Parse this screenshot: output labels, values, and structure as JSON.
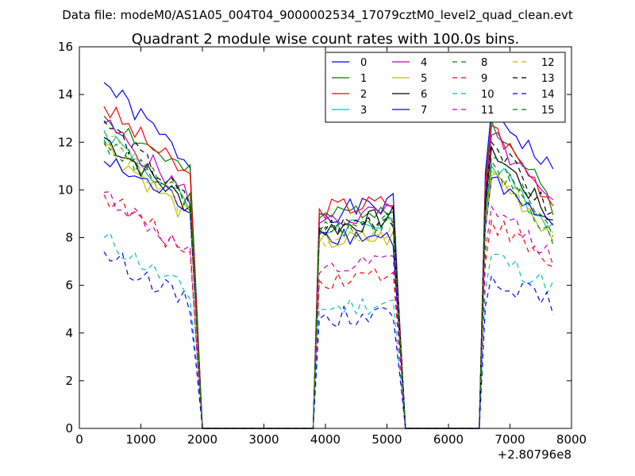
{
  "figure": {
    "suptitle": "Data file: modeM0/AS1A05_004T04_9000002534_17079cztM0_level2_quad_clean.evt"
  },
  "chart_data": {
    "type": "line",
    "title": "Quadrant 2 module wise count rates with 100.0s bins.",
    "xlabel": "",
    "ylabel": "",
    "x_offset_label": "+2.80796e8",
    "xlim": [
      0,
      8000
    ],
    "ylim": [
      0,
      16
    ],
    "xticks": [
      0,
      1000,
      2000,
      3000,
      4000,
      5000,
      6000,
      7000,
      8000
    ],
    "yticks": [
      0,
      2,
      4,
      6,
      8,
      10,
      12,
      14,
      16
    ],
    "grid": false,
    "legend": {
      "placement": "top-right",
      "columns": 4
    },
    "segments": [
      {
        "x": [
          400,
          1800
        ],
        "levels": "A"
      },
      {
        "x": [
          3900,
          5100
        ],
        "levels": "B"
      },
      {
        "x": [
          6700,
          7700
        ],
        "levels": "C"
      }
    ],
    "series": [
      {
        "name": "0",
        "color": "#0000ff",
        "dash": "solid",
        "A": [
          14.5,
          11.1
        ],
        "B": [
          9.0,
          9.4
        ],
        "C": [
          13.4,
          10.7
        ]
      },
      {
        "name": "1",
        "color": "#008000",
        "dash": "solid",
        "A": [
          13.1,
          10.6
        ],
        "B": [
          8.8,
          9.4
        ],
        "C": [
          12.9,
          9.4
        ]
      },
      {
        "name": "2",
        "color": "#ff0000",
        "dash": "solid",
        "A": [
          13.5,
          10.5
        ],
        "B": [
          9.2,
          9.5
        ],
        "C": [
          12.7,
          9.5
        ]
      },
      {
        "name": "3",
        "color": "#00bfbf",
        "dash": "solid",
        "A": [
          12.5,
          9.2
        ],
        "B": [
          8.3,
          8.8
        ],
        "C": [
          11.0,
          8.5
        ]
      },
      {
        "name": "4",
        "color": "#bf00bf",
        "dash": "solid",
        "A": [
          12.8,
          9.7
        ],
        "B": [
          8.6,
          9.1
        ],
        "C": [
          12.3,
          9.2
        ]
      },
      {
        "name": "5",
        "color": "#bfbf00",
        "dash": "solid",
        "A": [
          11.9,
          8.8
        ],
        "B": [
          7.8,
          8.0
        ],
        "C": [
          10.8,
          8.1
        ]
      },
      {
        "name": "6",
        "color": "#000000",
        "dash": "solid",
        "A": [
          12.2,
          9.3
        ],
        "B": [
          8.3,
          8.9
        ],
        "C": [
          11.8,
          8.7
        ]
      },
      {
        "name": "7",
        "color": "#0000ff",
        "dash": "solid",
        "A": [
          11.2,
          9.3
        ],
        "B": [
          8.2,
          8.0
        ],
        "C": [
          10.5,
          8.2
        ]
      },
      {
        "name": "8",
        "color": "#008000",
        "dash": "dashed",
        "A": [
          12.1,
          9.5
        ],
        "B": [
          8.1,
          8.6
        ],
        "C": [
          11.2,
          8.0
        ]
      },
      {
        "name": "9",
        "color": "#ff0000",
        "dash": "dashed",
        "A": [
          9.8,
          7.3
        ],
        "B": [
          6.2,
          6.6
        ],
        "C": [
          8.7,
          6.8
        ]
      },
      {
        "name": "10",
        "color": "#00bfbf",
        "dash": "dashed",
        "A": [
          8.0,
          5.6
        ],
        "B": [
          5.0,
          5.3
        ],
        "C": [
          7.3,
          5.9
        ]
      },
      {
        "name": "11",
        "color": "#bf00bf",
        "dash": "dashed",
        "A": [
          9.9,
          7.2
        ],
        "B": [
          6.5,
          7.0
        ],
        "C": [
          9.3,
          7.2
        ]
      },
      {
        "name": "12",
        "color": "#bfbf00",
        "dash": "dashed",
        "A": [
          12.4,
          9.0
        ],
        "B": [
          8.0,
          8.4
        ],
        "C": [
          10.6,
          8.3
        ]
      },
      {
        "name": "13",
        "color": "#000000",
        "dash": "dashed",
        "A": [
          12.9,
          9.4
        ],
        "B": [
          8.4,
          8.9
        ],
        "C": [
          12.0,
          8.9
        ]
      },
      {
        "name": "14",
        "color": "#0000ff",
        "dash": "dashed",
        "A": [
          7.4,
          5.2
        ],
        "B": [
          4.6,
          4.9
        ],
        "C": [
          6.4,
          5.2
        ]
      },
      {
        "name": "15",
        "color": "#008000",
        "dash": "dashed",
        "A": [
          12.0,
          9.6
        ],
        "B": [
          8.2,
          8.7
        ],
        "C": [
          11.4,
          8.2
        ]
      }
    ]
  }
}
